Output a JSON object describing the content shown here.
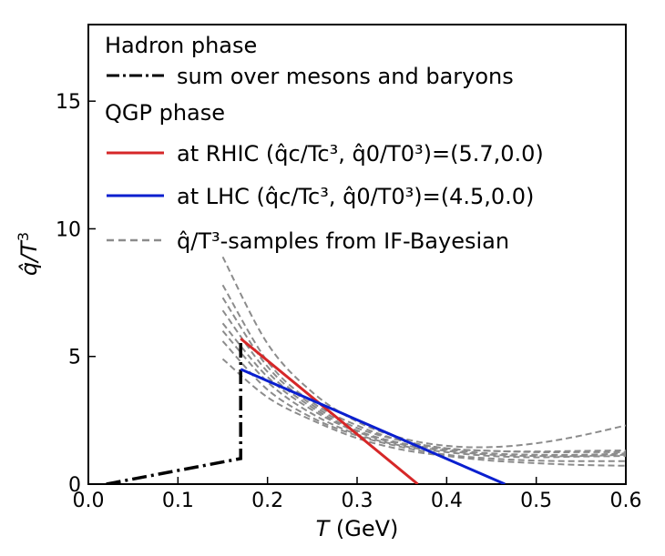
{
  "chart_data": {
    "type": "line",
    "xlabel_italic": "T",
    "xlabel_unit": " (GeV)",
    "ylabel_main": "q̂/T",
    "ylabel_sup": "3",
    "xlim": [
      0.0,
      0.6
    ],
    "ylim": [
      0,
      18
    ],
    "xticks": [
      "0.0",
      "0.1",
      "0.2",
      "0.3",
      "0.4",
      "0.5",
      "0.6"
    ],
    "xtick_values": [
      0.0,
      0.1,
      0.2,
      0.3,
      0.4,
      0.5,
      0.6
    ],
    "yticks": [
      "0",
      "5",
      "10",
      "15"
    ],
    "ytick_values": [
      0,
      5,
      10,
      15
    ],
    "legend_placement": "top-left",
    "legend": {
      "hadron_header": "Hadron phase",
      "hadron_label": "sum over mesons and baryons",
      "qgp_header": "QGP phase",
      "rhic_label": "at RHIC (q̂c/Tc³, q̂0/T0³)=(5.7,0.0)",
      "lhc_label": "at LHC (q̂c/Tc³, q̂0/T0³)=(4.5,0.0)",
      "samples_label": "q̂/T³-samples from IF-Bayesian"
    },
    "colors": {
      "hadron": "#000000",
      "rhic": "#d62728",
      "lhc": "#0a1fcf",
      "samples": "#8c8c8c"
    },
    "series": [
      {
        "name": "sum over mesons and baryons",
        "style": "dashdot",
        "x": [
          0.02,
          0.17,
          0.17,
          0.17
        ],
        "y": [
          0.0,
          1.0,
          1.0,
          5.7
        ]
      },
      {
        "name": "at RHIC (q̂c/Tc³, q̂0/T0³)=(5.7,0.0)",
        "style": "solid",
        "x": [
          0.17,
          0.3677
        ],
        "y": [
          5.7,
          0.0
        ]
      },
      {
        "name": "at LHC (q̂c/Tc³, q̂0/T0³)=(4.5,0.0)",
        "style": "solid",
        "x": [
          0.17,
          0.465
        ],
        "y": [
          4.5,
          0.0
        ]
      }
    ],
    "samples": [
      {
        "x": [
          0.15,
          0.2,
          0.25,
          0.3,
          0.35,
          0.4,
          0.45,
          0.5,
          0.55,
          0.6
        ],
        "y": [
          8.9,
          5.5,
          3.6,
          2.45,
          1.8,
          1.5,
          1.45,
          1.6,
          1.9,
          2.3
        ]
      },
      {
        "x": [
          0.15,
          0.2,
          0.25,
          0.3,
          0.35,
          0.4,
          0.45,
          0.5,
          0.55,
          0.6
        ],
        "y": [
          7.8,
          4.8,
          3.2,
          2.3,
          1.7,
          1.4,
          1.3,
          1.28,
          1.3,
          1.32
        ]
      },
      {
        "x": [
          0.15,
          0.2,
          0.25,
          0.3,
          0.35,
          0.4,
          0.45,
          0.5,
          0.55,
          0.6
        ],
        "y": [
          7.3,
          4.6,
          3.1,
          2.2,
          1.7,
          1.4,
          1.3,
          1.25,
          1.25,
          1.25
        ]
      },
      {
        "x": [
          0.15,
          0.2,
          0.25,
          0.3,
          0.35,
          0.4,
          0.45,
          0.5,
          0.55,
          0.6
        ],
        "y": [
          6.8,
          4.4,
          3.0,
          2.1,
          1.6,
          1.35,
          1.2,
          1.15,
          1.15,
          1.2
        ]
      },
      {
        "x": [
          0.15,
          0.2,
          0.25,
          0.3,
          0.35,
          0.4,
          0.45,
          0.5,
          0.55,
          0.6
        ],
        "y": [
          6.3,
          4.2,
          2.9,
          2.05,
          1.55,
          1.3,
          1.15,
          1.1,
          1.1,
          1.15
        ]
      },
      {
        "x": [
          0.15,
          0.2,
          0.25,
          0.3,
          0.35,
          0.4,
          0.45,
          0.5,
          0.55,
          0.6
        ],
        "y": [
          6.0,
          4.0,
          2.75,
          1.95,
          1.5,
          1.25,
          1.1,
          1.05,
          1.08,
          1.1
        ]
      },
      {
        "x": [
          0.15,
          0.2,
          0.25,
          0.3,
          0.35,
          0.4,
          0.45,
          0.5,
          0.55,
          0.6
        ],
        "y": [
          5.6,
          3.7,
          2.6,
          1.9,
          1.45,
          1.15,
          1.0,
          0.92,
          0.9,
          0.9
        ]
      },
      {
        "x": [
          0.15,
          0.2,
          0.25,
          0.3,
          0.35,
          0.4,
          0.45,
          0.5,
          0.55,
          0.6
        ],
        "y": [
          4.9,
          3.4,
          2.5,
          1.8,
          1.35,
          1.1,
          0.92,
          0.82,
          0.75,
          0.72
        ]
      }
    ]
  }
}
